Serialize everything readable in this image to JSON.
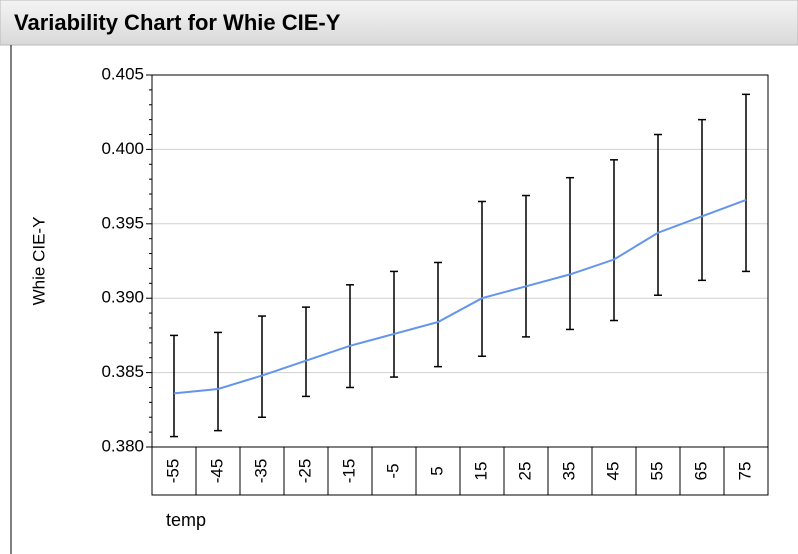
{
  "chart_data": {
    "type": "variability",
    "title": "Variability Chart for Whie CIE-Y",
    "y_label": "Whie CIE-Y",
    "x_label": "temp",
    "categories": [
      "-55",
      "-45",
      "-35",
      "-25",
      "-15",
      "-5",
      "5",
      "15",
      "25",
      "35",
      "45",
      "55",
      "65",
      "75"
    ],
    "mean": [
      0.3836,
      0.3839,
      0.3848,
      0.3858,
      0.3868,
      0.3876,
      0.3884,
      0.39,
      0.3908,
      0.3916,
      0.3926,
      0.3944,
      0.3955,
      0.3966
    ],
    "max": [
      0.3875,
      0.3877,
      0.3888,
      0.3894,
      0.3909,
      0.3918,
      0.3924,
      0.3965,
      0.3969,
      0.3981,
      0.3993,
      0.401,
      0.402,
      0.4037
    ],
    "min": [
      0.3807,
      0.3811,
      0.382,
      0.3834,
      0.384,
      0.3847,
      0.3854,
      0.3861,
      0.3874,
      0.3879,
      0.3885,
      0.3902,
      0.3912,
      0.3918
    ],
    "mean_color": "#6495ed",
    "bar_color": "#000000",
    "ylim": [
      0.38,
      0.405
    ],
    "yticks": [
      {
        "value": 0.38,
        "label": "0.380"
      },
      0.385,
      {
        "value": 0.39,
        "label": "0.390"
      },
      0.395,
      {
        "value": 0.4,
        "label": "0.400"
      },
      0.405
    ],
    "grid": true
  }
}
